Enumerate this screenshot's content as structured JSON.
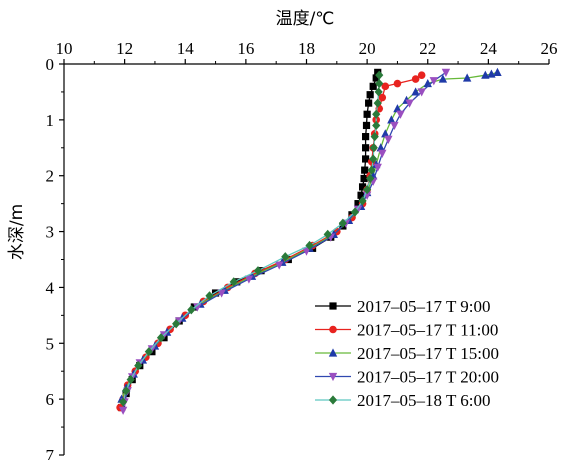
{
  "chart_data": {
    "type": "line",
    "xlabel": "温度/℃",
    "ylabel": "水深/m",
    "x_axis_position": "top",
    "y_axis_inverted": true,
    "xlim": [
      10,
      26
    ],
    "ylim": [
      0,
      7
    ],
    "x_ticks": [
      10,
      12,
      14,
      16,
      18,
      20,
      22,
      24,
      26
    ],
    "y_ticks": [
      0,
      1,
      2,
      3,
      4,
      5,
      6,
      7
    ],
    "grid": false,
    "legend_position": "bottom-right",
    "series": [
      {
        "name": "2017–05–17 T 9:00",
        "color": "#000000",
        "marker": "square",
        "points": [
          [
            20.35,
            0.15
          ],
          [
            20.3,
            0.25
          ],
          [
            20.2,
            0.4
          ],
          [
            20.1,
            0.55
          ],
          [
            20.05,
            0.7
          ],
          [
            20.0,
            0.9
          ],
          [
            19.98,
            1.1
          ],
          [
            19.95,
            1.3
          ],
          [
            19.95,
            1.5
          ],
          [
            19.95,
            1.7
          ],
          [
            19.92,
            1.9
          ],
          [
            19.9,
            2.05
          ],
          [
            19.85,
            2.2
          ],
          [
            19.8,
            2.35
          ],
          [
            19.7,
            2.5
          ],
          [
            19.5,
            2.7
          ],
          [
            19.2,
            2.9
          ],
          [
            18.8,
            3.1
          ],
          [
            18.2,
            3.3
          ],
          [
            17.4,
            3.5
          ],
          [
            16.5,
            3.7
          ],
          [
            15.7,
            3.9
          ],
          [
            15.0,
            4.1
          ],
          [
            14.3,
            4.35
          ],
          [
            13.8,
            4.6
          ],
          [
            13.3,
            4.9
          ],
          [
            12.9,
            5.15
          ],
          [
            12.5,
            5.4
          ],
          [
            12.25,
            5.65
          ],
          [
            12.05,
            5.9
          ],
          [
            11.9,
            6.15
          ]
        ]
      },
      {
        "name": "2017–05–17 T 11:00",
        "color": "#e8231f",
        "marker": "circle",
        "points": [
          [
            21.8,
            0.2
          ],
          [
            21.6,
            0.27
          ],
          [
            21.0,
            0.35
          ],
          [
            20.6,
            0.4
          ],
          [
            20.5,
            0.6
          ],
          [
            20.4,
            0.8
          ],
          [
            20.3,
            1.0
          ],
          [
            20.25,
            1.25
          ],
          [
            20.2,
            1.5
          ],
          [
            20.15,
            1.75
          ],
          [
            20.1,
            2.0
          ],
          [
            20.0,
            2.25
          ],
          [
            19.85,
            2.5
          ],
          [
            19.5,
            2.75
          ],
          [
            19.0,
            3.0
          ],
          [
            18.2,
            3.25
          ],
          [
            17.3,
            3.5
          ],
          [
            16.3,
            3.75
          ],
          [
            15.4,
            4.0
          ],
          [
            14.6,
            4.25
          ],
          [
            14.0,
            4.5
          ],
          [
            13.5,
            4.75
          ],
          [
            13.1,
            5.0
          ],
          [
            12.7,
            5.25
          ],
          [
            12.35,
            5.5
          ],
          [
            12.1,
            5.75
          ],
          [
            11.95,
            6.0
          ],
          [
            11.85,
            6.15
          ]
        ]
      },
      {
        "name": "2017–05–17 T 15:00",
        "color": "#1f3aa8",
        "line_color": "#67b93a",
        "marker": "triangle-up",
        "points": [
          [
            24.3,
            0.15
          ],
          [
            24.1,
            0.18
          ],
          [
            23.9,
            0.2
          ],
          [
            23.3,
            0.25
          ],
          [
            22.5,
            0.27
          ],
          [
            22.0,
            0.35
          ],
          [
            21.6,
            0.5
          ],
          [
            21.3,
            0.65
          ],
          [
            21.0,
            0.8
          ],
          [
            20.8,
            1.0
          ],
          [
            20.6,
            1.25
          ],
          [
            20.45,
            1.5
          ],
          [
            20.3,
            1.8
          ],
          [
            20.2,
            2.0
          ],
          [
            20.0,
            2.3
          ],
          [
            19.8,
            2.55
          ],
          [
            19.4,
            2.8
          ],
          [
            18.9,
            3.05
          ],
          [
            18.1,
            3.3
          ],
          [
            17.2,
            3.55
          ],
          [
            16.2,
            3.8
          ],
          [
            15.3,
            4.05
          ],
          [
            14.5,
            4.3
          ],
          [
            13.9,
            4.55
          ],
          [
            13.4,
            4.8
          ],
          [
            13.0,
            5.05
          ],
          [
            12.6,
            5.3
          ],
          [
            12.3,
            5.55
          ],
          [
            12.05,
            5.8
          ],
          [
            11.9,
            6.0
          ]
        ]
      },
      {
        "name": "2017–05–17 T 20:00",
        "color": "#9a4fc0",
        "line_color": "#3048b0",
        "marker": "triangle-down",
        "points": [
          [
            22.6,
            0.15
          ],
          [
            22.2,
            0.3
          ],
          [
            21.8,
            0.5
          ],
          [
            21.4,
            0.7
          ],
          [
            21.1,
            0.9
          ],
          [
            20.9,
            1.1
          ],
          [
            20.7,
            1.35
          ],
          [
            20.5,
            1.6
          ],
          [
            20.35,
            1.85
          ],
          [
            20.2,
            2.1
          ],
          [
            20.0,
            2.35
          ],
          [
            19.7,
            2.6
          ],
          [
            19.3,
            2.85
          ],
          [
            18.8,
            3.1
          ],
          [
            18.0,
            3.35
          ],
          [
            17.1,
            3.6
          ],
          [
            16.1,
            3.85
          ],
          [
            15.2,
            4.1
          ],
          [
            14.4,
            4.35
          ],
          [
            13.8,
            4.6
          ],
          [
            13.3,
            4.85
          ],
          [
            12.9,
            5.1
          ],
          [
            12.5,
            5.35
          ],
          [
            12.25,
            5.6
          ],
          [
            12.1,
            5.85
          ],
          [
            12.0,
            6.05
          ],
          [
            11.95,
            6.2
          ]
        ]
      },
      {
        "name": "2017–05–18 T 6:00",
        "color": "#2a7a3a",
        "line_color": "#5ec8c0",
        "marker": "diamond",
        "points": [
          [
            20.4,
            0.2
          ],
          [
            20.4,
            0.35
          ],
          [
            20.38,
            0.5
          ],
          [
            20.35,
            0.7
          ],
          [
            20.3,
            0.9
          ],
          [
            20.3,
            1.1
          ],
          [
            20.25,
            1.3
          ],
          [
            20.22,
            1.5
          ],
          [
            20.2,
            1.7
          ],
          [
            20.15,
            1.9
          ],
          [
            20.1,
            2.05
          ],
          [
            20.0,
            2.25
          ],
          [
            19.85,
            2.45
          ],
          [
            19.6,
            2.65
          ],
          [
            19.2,
            2.85
          ],
          [
            18.7,
            3.05
          ],
          [
            18.1,
            3.25
          ],
          [
            17.3,
            3.45
          ],
          [
            16.4,
            3.7
          ],
          [
            15.6,
            3.9
          ],
          [
            14.8,
            4.15
          ],
          [
            14.2,
            4.4
          ],
          [
            13.7,
            4.65
          ],
          [
            13.2,
            4.9
          ],
          [
            12.8,
            5.15
          ],
          [
            12.45,
            5.4
          ],
          [
            12.2,
            5.65
          ],
          [
            12.05,
            5.85
          ],
          [
            11.95,
            6.05
          ]
        ]
      }
    ]
  }
}
